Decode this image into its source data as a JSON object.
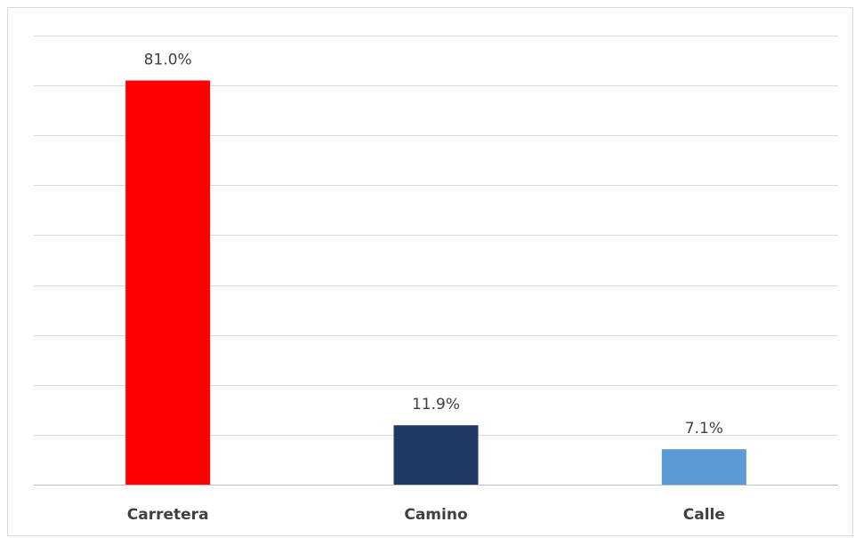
{
  "chart_data": {
    "type": "bar",
    "categories": [
      "Carretera",
      "Camino",
      "Calle"
    ],
    "values": [
      81.0,
      11.9,
      7.1
    ],
    "data_labels": [
      "81.0%",
      "11.9%",
      "7.1%"
    ],
    "colors": [
      "#ff0000",
      "#1f3864",
      "#5b9bd5"
    ],
    "title": "",
    "xlabel": "",
    "ylabel": "",
    "ylim": [
      0,
      90
    ],
    "grid": true,
    "legend": "none"
  }
}
